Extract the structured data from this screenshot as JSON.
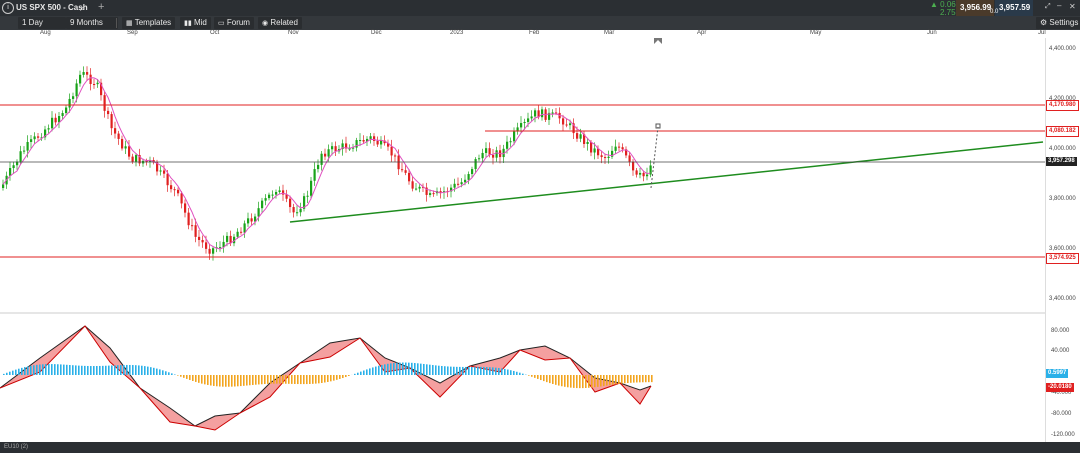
{
  "header": {
    "symbol": "US SPX 500 - Cash",
    "change_pct": "0.06%",
    "change_pts": "2.75",
    "bid": "3,956.99",
    "spread": "0.0",
    "ask": "3,957.59"
  },
  "toolbar": {
    "interval": "1 Day",
    "range": "9 Months",
    "templates": "Templates",
    "mid": "Mid",
    "forum": "Forum",
    "related": "Related",
    "settings": "Settings"
  },
  "time_axis": [
    "Aug",
    "Sep",
    "Oct",
    "Nov",
    "Dec",
    "2023",
    "Feb",
    "Mar",
    "Apr",
    "May",
    "Jun",
    "Jul"
  ],
  "price_axis": [
    "4,400.000",
    "4,200.000",
    "4,000.000",
    "3,800.000",
    "3,600.000",
    "3,400.000"
  ],
  "osc_axis": [
    "80.000",
    "40.000",
    "-40.000",
    "-80.000",
    "-120.000"
  ],
  "levels": {
    "resist_high": "4,170.980",
    "resist_mid": "4,080.182",
    "current": "3,957.298",
    "support": "3,574.925"
  },
  "oscillator": {
    "value_a": "0.5997",
    "value_b": "-20.0180"
  },
  "status": "EU10 (2)",
  "colors": {
    "up": "#19a319",
    "down": "#e02020",
    "ma": "#e050c0",
    "trend": "#1e8c1e",
    "level": "#e02020",
    "hist_pos": "#2ab0e8",
    "hist_neg": "#f2a51f"
  },
  "icons": [
    "info-icon",
    "search-icon",
    "plus-icon",
    "templates-icon",
    "mid-icon",
    "forum-icon",
    "related-icon",
    "gear-icon",
    "expand-icon",
    "minimize-icon",
    "maximize-icon",
    "close-icon"
  ]
}
